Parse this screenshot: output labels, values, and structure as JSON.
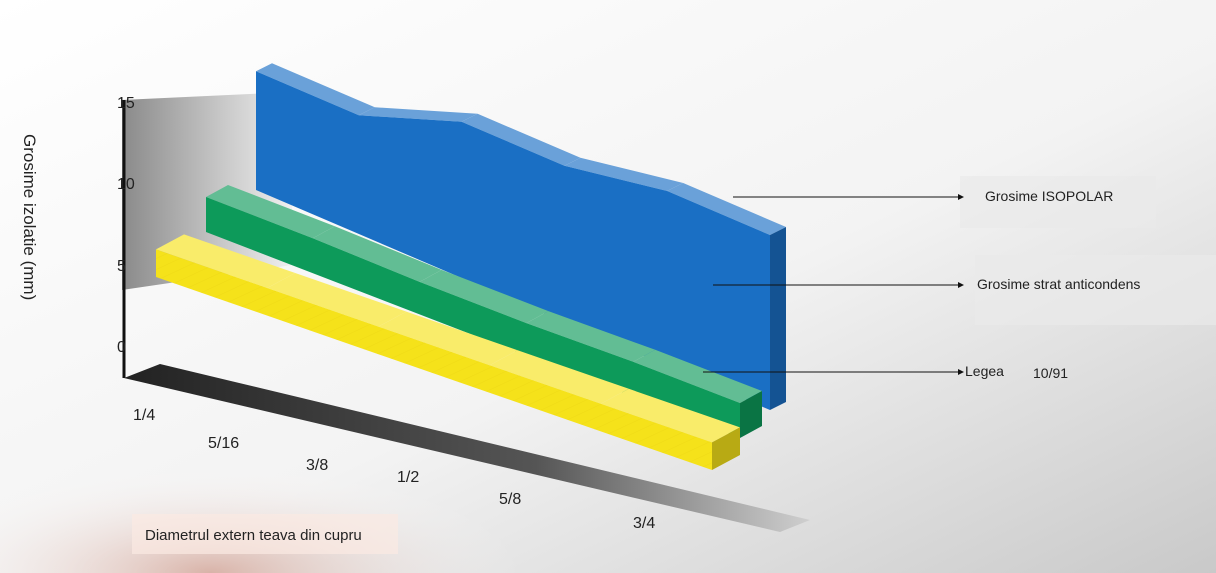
{
  "chart_data": {
    "type": "area",
    "title": "",
    "ylabel": "Grosime izolatie (mm)",
    "xlabel": "Diametrul extern teava din cupru",
    "categories": [
      "1/4",
      "5/16",
      "3/8",
      "1/2",
      "5/8",
      "3/4"
    ],
    "y_ticks": [
      "0",
      "5",
      "10",
      "15"
    ],
    "ylim": [
      0,
      15
    ],
    "series": [
      {
        "name": "Grosime ISOPOLAR",
        "values": [
          9.5,
          9.5,
          12.5,
          12.5,
          14,
          14
        ],
        "color": "#1a6fc4"
      },
      {
        "name": "Grosime strat anticondens",
        "values": [
          7,
          7,
          6.5,
          6.5,
          7,
          7
        ],
        "color": "#0d9a5a"
      },
      {
        "name": "Legea",
        "note": "10/91",
        "values": [
          6,
          6,
          6,
          6,
          6,
          6
        ],
        "color": "#f5e21a"
      }
    ],
    "legend_placement": "right",
    "grid": false
  }
}
